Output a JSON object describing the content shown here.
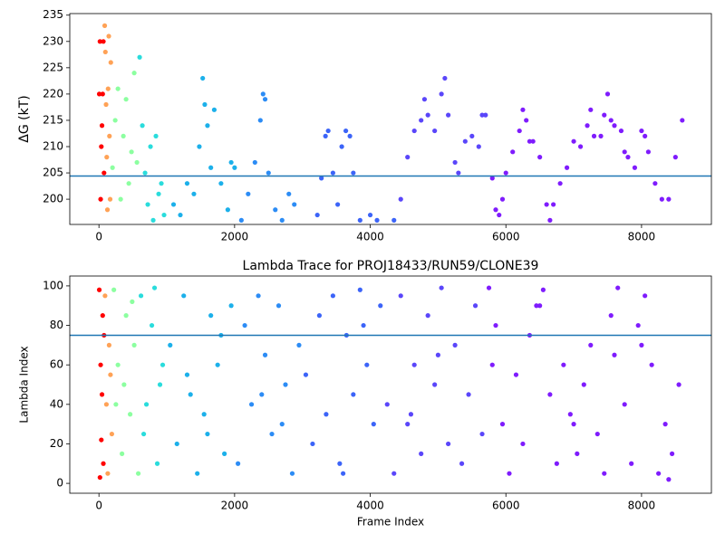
{
  "chart_data": [
    {
      "type": "scatter",
      "ylabel": "ΔG (kT)",
      "xlim": [
        -430,
        9030
      ],
      "ylim": [
        195.2,
        235.3
      ],
      "xticks": [
        0,
        2000,
        4000,
        6000,
        8000
      ],
      "yticks": [
        200,
        205,
        210,
        215,
        220,
        225,
        230,
        235
      ],
      "hline": 204.4,
      "hline_color": "#1f77b4",
      "series": [
        {
          "color": "#ff0000",
          "x": [
            5,
            15,
            25,
            35,
            45,
            55,
            65,
            75
          ],
          "values": [
            220,
            230,
            200,
            210,
            214,
            220,
            230,
            205
          ]
        },
        {
          "color": "#ffa256",
          "x": [
            85,
            95,
            105,
            115,
            125,
            135,
            145,
            155,
            165,
            175
          ],
          "values": [
            233,
            228,
            218,
            208,
            198,
            221,
            231,
            212,
            200,
            226
          ]
        },
        {
          "color": "#8cffa0",
          "x": [
            200,
            240,
            280,
            320,
            360,
            400,
            440,
            480,
            520,
            560
          ],
          "values": [
            206,
            215,
            221,
            200,
            212,
            219,
            203,
            209,
            224,
            207
          ]
        },
        {
          "color": "#2adcdc",
          "x": [
            600,
            640,
            680,
            720,
            760,
            800,
            840,
            880,
            920,
            960
          ],
          "values": [
            227,
            214,
            205,
            199,
            210,
            196,
            212,
            201,
            203,
            197
          ]
        },
        {
          "color": "#1cb0ea",
          "x": [
            1100,
            1200,
            1300,
            1400,
            1480,
            1530,
            1560,
            1600,
            1650,
            1700,
            1800,
            1900,
            1950,
            2000
          ],
          "values": [
            199,
            197,
            203,
            201,
            210,
            223,
            218,
            214,
            206,
            217,
            203,
            198,
            207,
            206
          ]
        },
        {
          "color": "#2c8cf5",
          "x": [
            2100,
            2200,
            2300,
            2380,
            2420,
            2450,
            2500,
            2600,
            2700,
            2800,
            2880
          ],
          "values": [
            196,
            201,
            207,
            215,
            220,
            219,
            205,
            198,
            196,
            201,
            199
          ]
        },
        {
          "color": "#3c64f8",
          "x": [
            3220,
            3280,
            3340,
            3380,
            3450,
            3520,
            3580,
            3640,
            3700,
            3750,
            3850,
            4000,
            4100,
            4350
          ],
          "values": [
            197,
            204,
            212,
            213,
            205,
            199,
            210,
            213,
            212,
            205,
            196,
            197,
            196,
            196
          ]
        },
        {
          "color": "#5a46fa",
          "x": [
            4450,
            4550,
            4650,
            4750,
            4800,
            4850,
            4950,
            5050,
            5100,
            5150,
            5250,
            5300,
            5400,
            5500,
            5600,
            5650,
            5700
          ],
          "values": [
            200,
            208,
            213,
            215,
            219,
            216,
            213,
            220,
            223,
            216,
            207,
            205,
            211,
            212,
            210,
            216,
            216
          ]
        },
        {
          "color": "#7f1cfd",
          "x": [
            5800,
            5850,
            5900,
            5950,
            6000,
            6100,
            6200,
            6250,
            6300,
            6350,
            6400,
            6500,
            6600,
            6650,
            6700,
            6800,
            6900,
            7000,
            7100,
            7200,
            7250,
            7300,
            7400,
            7450,
            7500,
            7550,
            7600,
            7700,
            7750,
            7800,
            7900,
            8000,
            8050,
            8100,
            8200,
            8300,
            8400,
            8500,
            8600
          ],
          "values": [
            204,
            198,
            197,
            200,
            205,
            209,
            213,
            217,
            215,
            211,
            211,
            208,
            199,
            196,
            199,
            203,
            206,
            211,
            210,
            214,
            217,
            212,
            212,
            216,
            220,
            215,
            214,
            213,
            209,
            208,
            206,
            213,
            212,
            209,
            203,
            200,
            200,
            208,
            215
          ]
        }
      ]
    },
    {
      "type": "scatter",
      "title": "Lambda Trace for PROJ18433/RUN59/CLONE39",
      "xlabel": "Frame Index",
      "ylabel": "Lambda Index",
      "xlim": [
        -430,
        9030
      ],
      "ylim": [
        -5,
        105
      ],
      "xticks": [
        0,
        2000,
        4000,
        6000,
        8000
      ],
      "yticks": [
        0,
        20,
        40,
        60,
        80,
        100
      ],
      "hline": 75,
      "hline_color": "#1f77b4",
      "series": [
        {
          "color": "#ff0000",
          "x": [
            5,
            15,
            25,
            35,
            45,
            55,
            65,
            75
          ],
          "values": [
            98,
            3,
            60,
            22,
            45,
            85,
            10,
            75
          ]
        },
        {
          "color": "#ffa256",
          "x": [
            90,
            110,
            130,
            150,
            170,
            190
          ],
          "values": [
            95,
            40,
            5,
            70,
            55,
            25
          ]
        },
        {
          "color": "#8cffa0",
          "x": [
            220,
            280,
            340,
            400,
            460,
            520,
            580,
            250,
            370,
            490
          ],
          "values": [
            98,
            60,
            15,
            85,
            35,
            70,
            5,
            40,
            50,
            92
          ]
        },
        {
          "color": "#2adcdc",
          "x": [
            620,
            700,
            780,
            860,
            940,
            660,
            820,
            900
          ],
          "values": [
            95,
            40,
            80,
            10,
            60,
            25,
            99,
            50
          ]
        },
        {
          "color": "#1cb0ea",
          "x": [
            1050,
            1150,
            1250,
            1350,
            1450,
            1550,
            1650,
            1750,
            1850,
            1950,
            1300,
            1600,
            1800
          ],
          "values": [
            70,
            20,
            95,
            45,
            5,
            35,
            85,
            60,
            15,
            90,
            55,
            25,
            75
          ]
        },
        {
          "color": "#2c8cf5",
          "x": [
            2050,
            2150,
            2250,
            2350,
            2450,
            2550,
            2650,
            2750,
            2850,
            2950,
            2400,
            2700
          ],
          "values": [
            10,
            80,
            40,
            95,
            65,
            25,
            90,
            50,
            5,
            70,
            45,
            30
          ]
        },
        {
          "color": "#3c64f8",
          "x": [
            3050,
            3150,
            3250,
            3350,
            3450,
            3550,
            3650,
            3750,
            3850,
            3950,
            4050,
            4150,
            3600,
            3900
          ],
          "values": [
            55,
            20,
            85,
            35,
            95,
            10,
            75,
            45,
            98,
            60,
            30,
            90,
            5,
            80
          ]
        },
        {
          "color": "#5a46fa",
          "x": [
            4250,
            4350,
            4450,
            4550,
            4650,
            4750,
            4850,
            4950,
            5050,
            5150,
            5250,
            5350,
            5450,
            5550,
            5650,
            4600,
            5000
          ],
          "values": [
            40,
            5,
            95,
            30,
            60,
            15,
            85,
            50,
            99,
            20,
            70,
            10,
            45,
            90,
            25,
            35,
            65
          ]
        },
        {
          "color": "#7f1cfd",
          "x": [
            5750,
            5850,
            5950,
            6050,
            6150,
            6250,
            6350,
            6450,
            6550,
            6650,
            6750,
            6850,
            6950,
            7050,
            7150,
            7250,
            7350,
            7450,
            7550,
            7650,
            7750,
            7850,
            7950,
            8050,
            8150,
            8250,
            8350,
            8450,
            8550,
            5800,
            6500,
            7000,
            7600,
            8000,
            8400
          ],
          "values": [
            99,
            80,
            30,
            5,
            55,
            20,
            75,
            90,
            98,
            45,
            10,
            60,
            35,
            15,
            50,
            70,
            25,
            5,
            85,
            99,
            40,
            10,
            80,
            95,
            60,
            5,
            30,
            15,
            50,
            60,
            90,
            30,
            65,
            70,
            2
          ]
        }
      ]
    }
  ]
}
